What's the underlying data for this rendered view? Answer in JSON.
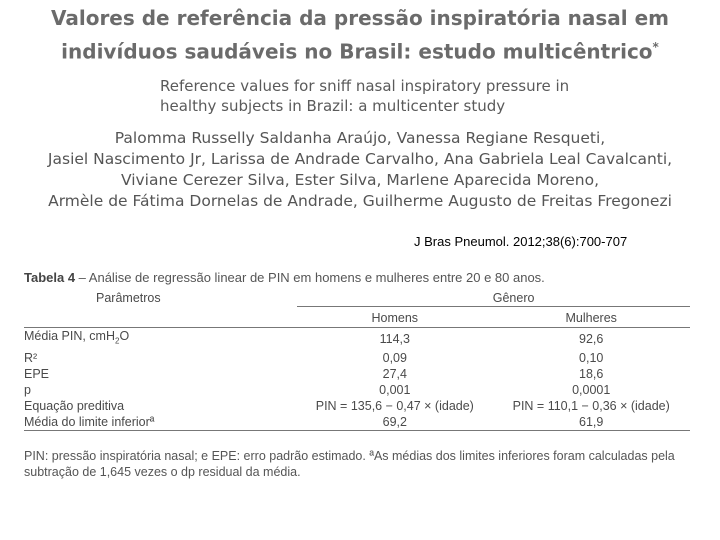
{
  "header": {
    "title_line1": "Valores de referência da pressão inspiratória nasal em",
    "title_line2": "indivíduos saudáveis no Brasil: estudo multicêntrico",
    "title_mark": "*",
    "subtitle_line1": "Reference values for sniff nasal inspiratory pressure in",
    "subtitle_line2": "healthy subjects in Brazil: a multicenter study",
    "authors_line1": "Palomma Russelly Saldanha Araújo, Vanessa Regiane Resqueti,",
    "authors_line2": "Jasiel Nascimento Jr, Larissa de Andrade Carvalho, Ana Gabriela Leal Cavalcanti,",
    "authors_line3": "Viviane Cerezer Silva, Ester Silva, Marlene Aparecida Moreno,",
    "authors_line4": "Armèle de Fátima Dornelas de Andrade, Guilherme Augusto de Freitas Fregonezi"
  },
  "citation": "J Bras Pneumol. 2012;38(6):700-707",
  "table": {
    "caption_label": "Tabela 4",
    "caption_text": " – Análise de regressão linear de PIN em homens e mulheres entre 20 e 80 anos.",
    "col_param": "Parâmetros",
    "col_group": "Gênero",
    "col_men": "Homens",
    "col_women": "Mulheres",
    "rows": [
      {
        "param": "Média PIN, cmH",
        "param_sub": "2",
        "param_after": "O",
        "men": "114,3",
        "women": "92,6"
      },
      {
        "param": "R²",
        "men": "0,09",
        "women": "0,10"
      },
      {
        "param": "EPE",
        "men": "27,4",
        "women": "18,6"
      },
      {
        "param": "p",
        "men": "0,001",
        "women": "0,0001"
      },
      {
        "param": "Equação preditiva",
        "men": "PIN = 135,6 − 0,47 × (idade)",
        "women": "PIN = 110,1 − 0,36 × (idade)"
      },
      {
        "param": "Média do limite inferiorª",
        "men": "69,2",
        "women": "61,9"
      }
    ],
    "footnote": "PIN: pressão inspiratória nasal; e EPE: erro padrão estimado. ªAs médias dos limites inferiores foram calculadas pela subtração de 1,645 vezes o dp residual da média."
  }
}
